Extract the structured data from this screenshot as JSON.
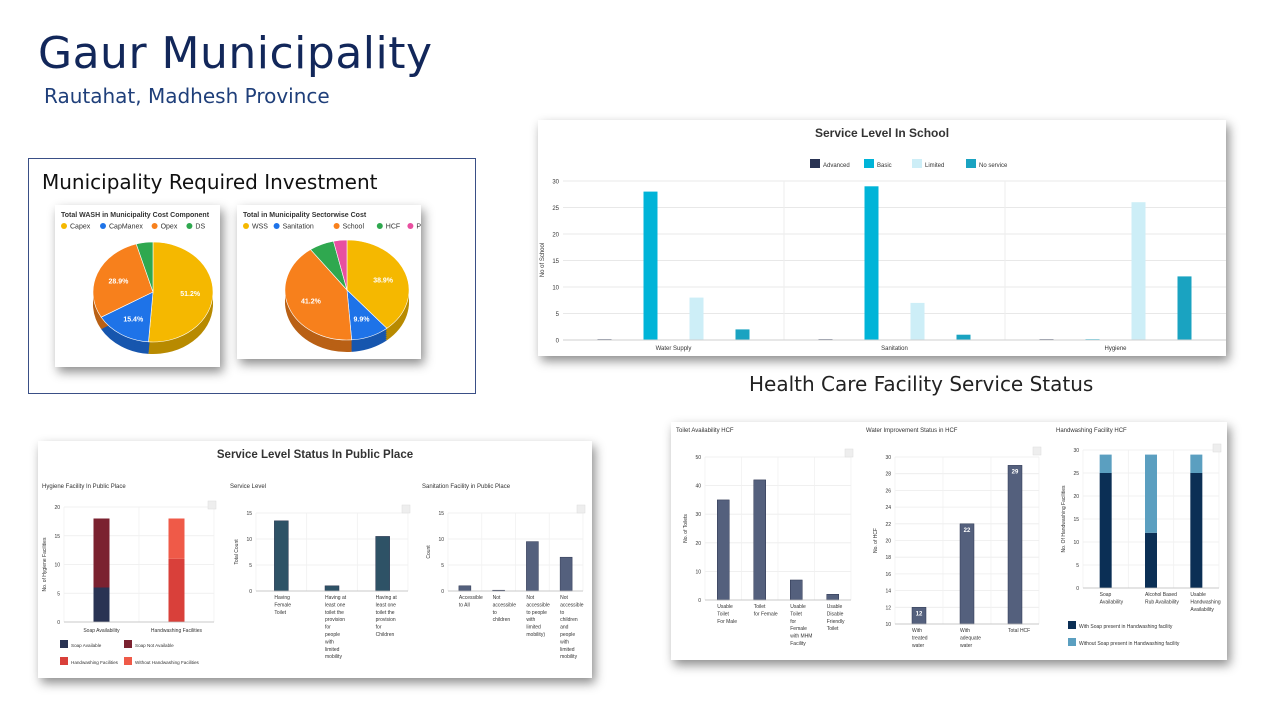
{
  "header": {
    "title": "Gaur Municipality",
    "subtitle": "Rautahat, Madhesh Province"
  },
  "investment": {
    "title": "Municipality Required Investment"
  },
  "hcf_section": {
    "title": "Health Care Facility Service Status"
  },
  "public_place": {
    "title": "Service Level Status In Public Place"
  },
  "colors": {
    "navy": "#293353",
    "teal": "#00b4d8",
    "lightblue": "#cdeef7",
    "cyan": "#1aa3c1",
    "maroon": "#7b2230",
    "red": "#e8493e",
    "slate": "#54607d",
    "darkteal": "#2e5266"
  },
  "chart_data": [
    {
      "type": "pie",
      "title": "Total WASH in Municipality Cost Component",
      "legend": [
        "Capex",
        "CapManex",
        "Opex",
        "DS"
      ],
      "values": [
        51.2,
        15.4,
        28.9,
        4.5
      ],
      "labels": [
        "51.2%",
        "15.4%",
        "28.9%",
        ""
      ],
      "colors": [
        "#f5b800",
        "#1e73e8",
        "#f7801c",
        "#2fa84f"
      ]
    },
    {
      "type": "pie",
      "title": "Total in Municipality Sectorwise Cost",
      "legend": [
        "WSS",
        "Sanitation",
        "School",
        "HCF",
        "PP"
      ],
      "values": [
        38.9,
        9.9,
        41.2,
        6.5,
        3.5
      ],
      "labels": [
        "38.9%",
        "9.9%",
        "41.2%",
        "",
        ""
      ],
      "colors": [
        "#f5b800",
        "#1e73e8",
        "#f7801c",
        "#2fa84f",
        "#e84fa0"
      ]
    },
    {
      "type": "bar",
      "title": "Service Level In School",
      "ylabel": "No of School",
      "ylim": [
        0,
        30
      ],
      "yticks": [
        "0",
        "5",
        "10",
        "15",
        "20",
        "25",
        "30"
      ],
      "categories": [
        "Water Supply",
        "Sanitation",
        "Hygiene"
      ],
      "series": [
        {
          "name": "Advanced",
          "color": "#293353",
          "values": [
            0,
            0,
            0
          ]
        },
        {
          "name": "Basic",
          "color": "#00b4d8",
          "values": [
            28,
            29,
            0
          ]
        },
        {
          "name": "Limited",
          "color": "#cdeef7",
          "values": [
            8,
            7,
            26
          ]
        },
        {
          "name": "No service",
          "color": "#1aa3c1",
          "values": [
            2,
            1,
            12
          ]
        }
      ]
    },
    {
      "type": "bar",
      "title": "Hygiene Facility In Public Place",
      "ylabel": "No. of Hygiene Facilities",
      "ylim": [
        0,
        20
      ],
      "yticks": [
        "0",
        "5",
        "10",
        "15",
        "20"
      ],
      "categories": [
        "Soap Availability",
        "Handwashing Facilities"
      ],
      "stacked": true,
      "series": [
        {
          "name": "Soap Available",
          "color": "#293353",
          "values": [
            6,
            0
          ]
        },
        {
          "name": "Soap Not Available",
          "color": "#7b2230",
          "values": [
            12,
            0
          ]
        },
        {
          "name": "Handwashing Facilities",
          "color": "#d9403a",
          "values": [
            0,
            11
          ]
        },
        {
          "name": "Without Handwashing Facilities",
          "color": "#ef5a48",
          "values": [
            0,
            7
          ]
        }
      ]
    },
    {
      "type": "bar",
      "title": "Service Level",
      "ylabel": "Total Count",
      "ylim": [
        0,
        15
      ],
      "yticks": [
        "0",
        "5",
        "10",
        "15"
      ],
      "categories": [
        "Having Female Toilet",
        "Having at least one toilet the provision for people with limited mobility",
        "Having at least one toilet the provision for Children"
      ],
      "category_lines": [
        [
          "Having",
          "Female",
          "Toilet"
        ],
        [
          "Having at",
          "least one",
          "toilet the",
          "provision",
          "for",
          "people",
          "with",
          "limited",
          "mobility"
        ],
        [
          "Having at",
          "least one",
          "toilet the",
          "provision",
          "for",
          "Children"
        ]
      ],
      "values": [
        13.5,
        1,
        10.5
      ],
      "color": "#2e5266"
    },
    {
      "type": "bar",
      "title": "Sanitation Facility in Public Place",
      "ylabel": "Count",
      "ylim": [
        0,
        15
      ],
      "yticks": [
        "0",
        "5",
        "10",
        "15"
      ],
      "categories": [
        "Accessible to All",
        "Not accessible to children",
        "Not accessible to people with limited mobility",
        "Not accessible to children and people with limited mobility"
      ],
      "category_lines": [
        [
          "Accessible",
          "to All"
        ],
        [
          "Not",
          "accessible",
          "to",
          "children"
        ],
        [
          "Not",
          "accessible",
          "to people",
          "with",
          "limited",
          "mobility)"
        ],
        [
          "Not",
          "accessible",
          "to",
          "children",
          "and",
          "people",
          "with",
          "limited",
          "mobility"
        ]
      ],
      "values": [
        1,
        0.1,
        9.5,
        6.5
      ],
      "color": "#54607d"
    },
    {
      "type": "bar",
      "title": "Toilet Availability HCF",
      "ylabel": "No. of Toilets",
      "ylim": [
        0,
        50
      ],
      "yticks": [
        "0",
        "10",
        "20",
        "30",
        "40",
        "50"
      ],
      "categories": [
        "Usable Toilet For Male",
        "Toilet for Female",
        "Usable Toilet for Female with MHM Facility",
        "Usable Disable Friendly Toilet"
      ],
      "category_lines": [
        [
          "Usable",
          "Toilet",
          "For Male"
        ],
        [
          "Toilet",
          "for Female"
        ],
        [
          "Usable",
          "Toilet",
          "for",
          "Female",
          "with MHM",
          "Facility"
        ],
        [
          "Usable",
          "Disable",
          "Friendly",
          "Toilet"
        ]
      ],
      "values": [
        35,
        42,
        7,
        2
      ],
      "color": "#54607d"
    },
    {
      "type": "bar",
      "title": "Water Improvement Status in HCF",
      "ylabel": "No. of HCF",
      "ylim": [
        10,
        30
      ],
      "yticks": [
        "10",
        "12",
        "14",
        "16",
        "18",
        "20",
        "22",
        "24",
        "26",
        "28",
        "30"
      ],
      "categories": [
        "With treated water",
        "With adequate water",
        "Total HCF"
      ],
      "category_lines": [
        [
          "With",
          "treated",
          "water"
        ],
        [
          "With",
          "adequate",
          "water"
        ],
        [
          "Total HCF"
        ]
      ],
      "values": [
        12,
        22,
        29
      ],
      "data_labels": [
        "12",
        "22",
        "29"
      ],
      "color": "#54607d"
    },
    {
      "type": "bar",
      "title": "Handwashing Facility HCF",
      "ylabel": "No. Of Handwashing Facilities",
      "ylim": [
        0,
        30
      ],
      "yticks": [
        "0",
        "5",
        "10",
        "15",
        "20",
        "25",
        "30"
      ],
      "categories": [
        "Soap Availability",
        "Alcohol Based Rub Availability",
        "Usable Handwashing Availability"
      ],
      "category_lines": [
        [
          "Soap",
          "Availability"
        ],
        [
          "Alcohol Based",
          "Rub Availability"
        ],
        [
          "Usable",
          "Handwashing",
          "Availability"
        ]
      ],
      "stacked": true,
      "series": [
        {
          "name": "With Soap present in Handwashing facility",
          "color": "#0b2f55",
          "values": [
            25,
            12,
            25
          ]
        },
        {
          "name": "Without Soap present in Handwashing facility",
          "color": "#5b9fc0",
          "values": [
            4,
            17,
            4
          ]
        }
      ]
    }
  ]
}
